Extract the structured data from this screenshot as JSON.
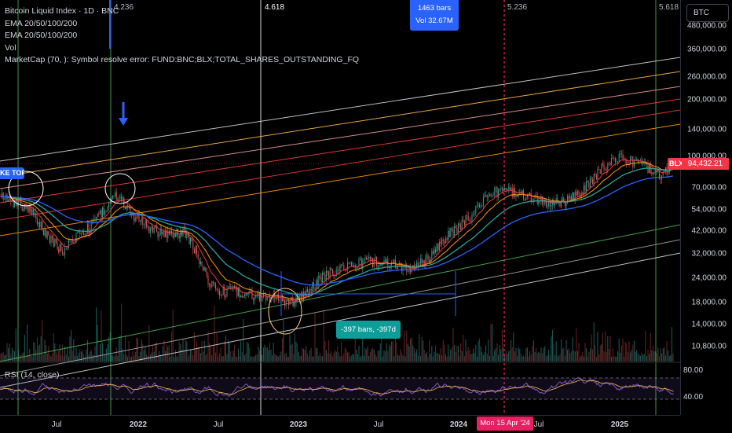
{
  "legend": {
    "title": "Bitcoin Liquid Index · 1D · BNC",
    "ema1": "EMA 20/50/100/200",
    "ema2": "EMA 20/50/100/200",
    "vol": "Vol",
    "marketcap": "MarketCap (70, ): Symbol resolve error: FUND:BNC;BLX;TOTAL_SHARES_OUTSTANDING_FQ"
  },
  "symbol_button": "BTC",
  "price_axis": [
    "480,000.00",
    "360,000.00",
    "260,000.00",
    "200,000.00",
    "140,000.00",
    "100,000.00",
    "70,000.00",
    "54,000.00",
    "42,000.00",
    "32,000.00",
    "24,000.00",
    "18,000.00",
    "14,000.00",
    "10,800.00"
  ],
  "current_price": "94,432.21",
  "symbol_tag": "BLX",
  "top_label": "KE TOP",
  "fib_labels": {
    "f1": "4.236",
    "f2": "4.618",
    "f3": "5.236",
    "f4": "5.618"
  },
  "measure_box": {
    "line1": "1463 bars",
    "line2": "Vol 32.67M"
  },
  "range_box": "-397 bars, -397d",
  "time_axis": [
    "Jul",
    "2022",
    "Jul",
    "2023",
    "Jul",
    "2024",
    "Jul",
    "2025"
  ],
  "time_highlight": "Mon 15 Apr '24",
  "rsi": {
    "label": "RSI (14, close)",
    "levels": [
      "80.00",
      "40.00"
    ]
  },
  "colors": {
    "ema20": "#f23645",
    "ema50": "#ff9800",
    "ema100": "#26a69a",
    "ema200": "#2962ff",
    "up": "#26a69a",
    "down": "#ef5350",
    "rsi": "#7e57c2",
    "accent": "#2962ff",
    "price_tag": "#f23645",
    "date_tag": "#e91e63"
  },
  "chart_data": {
    "type": "line",
    "series": [],
    "price_axis_scale": "log",
    "time_ticks": [
      "Jul",
      "2022",
      "Jul",
      "2023",
      "Jul",
      "2024",
      "Jul",
      "2025"
    ],
    "price_ticks": [
      480000,
      360000,
      260000,
      200000,
      140000,
      100000,
      70000,
      54000,
      42000,
      32000,
      24000,
      18000,
      14000,
      10800
    ],
    "last_price": 94432.21
  }
}
